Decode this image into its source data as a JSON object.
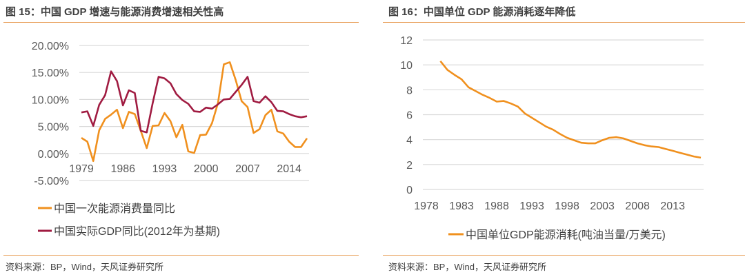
{
  "colors": {
    "orange": "#F0901E",
    "crimson": "#A01B41",
    "grid": "#D9D9D9",
    "rule": "#E8A05A"
  },
  "left": {
    "title": "图 15：中国 GDP 增速与能源消费增速相关性高",
    "source": "资料来源：BP，Wind，天风证券研究所"
  },
  "right": {
    "title": "图 16：中国单位 GDP 能源消耗逐年降低",
    "source": "资料来源：BP，Wind，天风证券研究所"
  },
  "chart_data": [
    {
      "type": "line",
      "title": "",
      "xlabel": "",
      "ylabel": "",
      "ylim": [
        -5,
        20
      ],
      "yticks": [
        "20.00%",
        "15.00%",
        "10.00%",
        "5.00%",
        "0.00%",
        "-5.00%"
      ],
      "ytick_values": [
        20,
        15,
        10,
        5,
        0,
        -5
      ],
      "xticks": [
        "1979",
        "1986",
        "1993",
        "2000",
        "2007",
        "2014"
      ],
      "grid": true,
      "legend": "bottom",
      "x": [
        1979,
        1980,
        1981,
        1982,
        1983,
        1984,
        1985,
        1986,
        1987,
        1988,
        1989,
        1990,
        1991,
        1992,
        1993,
        1994,
        1995,
        1996,
        1997,
        1998,
        1999,
        2000,
        2001,
        2002,
        2003,
        2004,
        2005,
        2006,
        2007,
        2008,
        2009,
        2010,
        2011,
        2012,
        2013,
        2014,
        2015,
        2016,
        2017
      ],
      "series": [
        {
          "name": "中国一次能源消费量同比",
          "color": "#F0901E",
          "values": [
            2.9,
            2.2,
            -1.4,
            4.3,
            6.4,
            7.2,
            8.1,
            4.7,
            7.7,
            7.3,
            4.2,
            1.0,
            5.1,
            5.2,
            7.5,
            6.0,
            3.0,
            5.3,
            0.4,
            0.1,
            3.4,
            3.5,
            5.6,
            9.3,
            16.5,
            16.9,
            13.6,
            9.7,
            8.6,
            3.8,
            4.5,
            7.1,
            8.1,
            4.1,
            3.7,
            2.2,
            1.2,
            1.2,
            2.8
          ]
        },
        {
          "name": "中国实际GDP同比(2012年为基期)",
          "color": "#A01B41",
          "values": [
            7.6,
            7.8,
            5.1,
            9.0,
            10.8,
            15.2,
            13.4,
            8.9,
            11.7,
            11.2,
            4.2,
            3.9,
            9.3,
            14.2,
            13.9,
            13.0,
            11.0,
            9.9,
            9.2,
            7.8,
            7.7,
            8.5,
            8.3,
            9.1,
            10.0,
            10.1,
            11.4,
            12.7,
            14.2,
            9.7,
            9.4,
            10.6,
            9.5,
            7.9,
            7.8,
            7.3,
            6.9,
            6.7,
            6.9
          ]
        }
      ]
    },
    {
      "type": "line",
      "title": "",
      "xlabel": "",
      "ylabel": "",
      "ylim": [
        0,
        12
      ],
      "yticks": [
        "12",
        "10",
        "8",
        "6",
        "4",
        "2",
        "0"
      ],
      "ytick_values": [
        12,
        10,
        8,
        6,
        4,
        2,
        0
      ],
      "xticks": [
        "1978",
        "1983",
        "1988",
        "1993",
        "1998",
        "2003",
        "2008",
        "2013"
      ],
      "grid": true,
      "legend": "bottom",
      "x": [
        1980,
        1981,
        1982,
        1983,
        1984,
        1985,
        1986,
        1987,
        1988,
        1989,
        1990,
        1991,
        1992,
        1993,
        1994,
        1995,
        1996,
        1997,
        1998,
        1999,
        2000,
        2001,
        2002,
        2003,
        2004,
        2005,
        2006,
        2007,
        2008,
        2009,
        2010,
        2011,
        2012,
        2013,
        2014,
        2015,
        2016,
        2017
      ],
      "series": [
        {
          "name": "中国单位GDP能源消耗(吨油当量/万美元)",
          "color": "#F0901E",
          "values": [
            10.3,
            9.6,
            9.2,
            8.85,
            8.2,
            7.9,
            7.6,
            7.35,
            7.05,
            7.1,
            6.9,
            6.65,
            6.1,
            5.75,
            5.4,
            5.05,
            4.8,
            4.45,
            4.15,
            3.95,
            3.75,
            3.7,
            3.7,
            3.95,
            4.15,
            4.2,
            4.1,
            3.9,
            3.7,
            3.55,
            3.45,
            3.4,
            3.25,
            3.1,
            2.95,
            2.8,
            2.65,
            2.55
          ]
        }
      ]
    }
  ]
}
